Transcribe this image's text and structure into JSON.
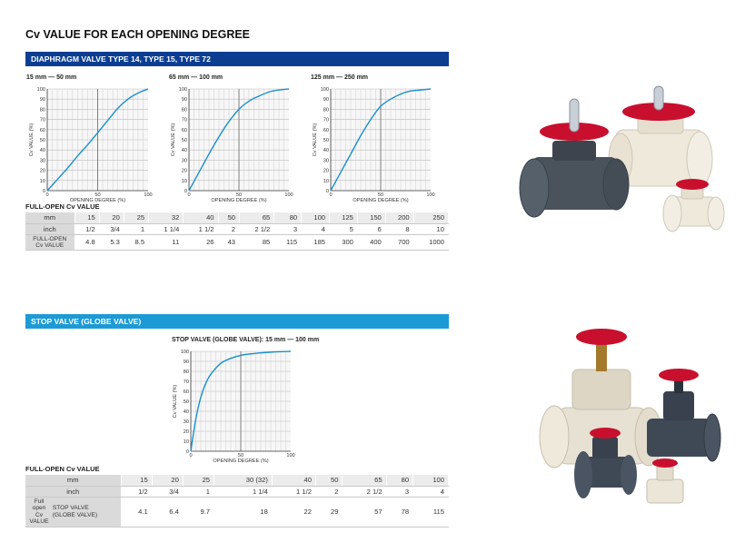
{
  "page": {
    "title": "Cv VALUE FOR EACH OPENING DEGREE"
  },
  "sections": [
    {
      "heading": "DIAPHRAGM VALVE TYPE 14, TYPE 15, TYPE 72",
      "table_label": "FULL-OPEN Cv VALUE",
      "table": {
        "mm_label": "mm",
        "inch_label": "inch",
        "value_label_1": "FULL-OPEN",
        "value_label_2": "Cv VALUE",
        "mm": [
          "15",
          "20",
          "25",
          "32",
          "40",
          "50",
          "65",
          "80",
          "100",
          "125",
          "150",
          "200",
          "250"
        ],
        "inch": [
          "1/2",
          "3/4",
          "1",
          "1 1/4",
          "1 1/2",
          "2",
          "2 1/2",
          "3",
          "4",
          "5",
          "6",
          "8",
          "10"
        ],
        "values": [
          "4.8",
          "5.3",
          "8.5",
          "11",
          "26",
          "43",
          "85",
          "115",
          "185",
          "300",
          "400",
          "700",
          "1000"
        ]
      }
    },
    {
      "heading": "STOP VALVE (GLOBE VALVE)",
      "table_label": "FULL-OPEN Cv VALUE",
      "table": {
        "mm_label": "mm",
        "inch_label": "inch",
        "value_label_1": "Full",
        "value_label_2": "open",
        "value_label_3": "Cv",
        "value_label_4": "VALUE",
        "value_sub_1": "STOP VALVE",
        "value_sub_2": "(GLOBE VALVE)",
        "mm": [
          "15",
          "20",
          "25",
          "30 (32)",
          "40",
          "50",
          "65",
          "80",
          "100"
        ],
        "inch": [
          "1/2",
          "3/4",
          "1",
          "1 1/4",
          "1 1/2",
          "2",
          "2 1/2",
          "3",
          "4"
        ],
        "values": [
          "4.1",
          "6.4",
          "9.7",
          "18",
          "22",
          "29",
          "57",
          "78",
          "115"
        ]
      }
    }
  ],
  "chart_data": [
    {
      "type": "line",
      "title": "15 mm — 50 mm",
      "xlabel": "OPENING DEGREE (%)",
      "ylabel": "Cv VALUE (%)",
      "xlim": [
        0,
        100
      ],
      "ylim": [
        0,
        100
      ],
      "x_ticks": [
        "0",
        "50",
        "100"
      ],
      "y_ticks": [
        "0",
        "10",
        "20",
        "30",
        "40",
        "50",
        "60",
        "70",
        "80",
        "90",
        "100"
      ],
      "grid": true,
      "line_color": "#1a8fd0",
      "x": [
        0,
        10,
        20,
        30,
        40,
        50,
        60,
        70,
        80,
        90,
        100
      ],
      "y": [
        0,
        11,
        22,
        34,
        45,
        57,
        69,
        81,
        90,
        96,
        100
      ]
    },
    {
      "type": "line",
      "title": "65 mm — 100 mm",
      "xlabel": "OPENING DEGREE (%)",
      "ylabel": "Cv VALUE (%)",
      "xlim": [
        0,
        100
      ],
      "ylim": [
        0,
        100
      ],
      "x_ticks": [
        "0",
        "50",
        "100"
      ],
      "y_ticks": [
        "0",
        "10",
        "20",
        "30",
        "40",
        "50",
        "60",
        "70",
        "80",
        "90",
        "100"
      ],
      "grid": true,
      "line_color": "#1a8fd0",
      "x": [
        0,
        10,
        20,
        30,
        40,
        50,
        60,
        70,
        80,
        90,
        100
      ],
      "y": [
        0,
        18,
        36,
        53,
        68,
        80,
        88,
        93,
        97,
        99,
        100
      ]
    },
    {
      "type": "line",
      "title": "125 mm — 250 mm",
      "xlabel": "OPENING DEGREE (%)",
      "ylabel": "Cv VALUE (%)",
      "xlim": [
        0,
        100
      ],
      "ylim": [
        0,
        100
      ],
      "x_ticks": [
        "0",
        "50",
        "100"
      ],
      "y_ticks": [
        "0",
        "10",
        "20",
        "30",
        "40",
        "50",
        "60",
        "70",
        "80",
        "90",
        "100"
      ],
      "grid": true,
      "line_color": "#1a8fd0",
      "x": [
        0,
        10,
        20,
        30,
        40,
        50,
        60,
        70,
        80,
        90,
        100
      ],
      "y": [
        0,
        18,
        36,
        54,
        70,
        83,
        90,
        95,
        98,
        99,
        100
      ]
    },
    {
      "type": "line",
      "title": "STOP VALVE (GLOBE VALVE): 15 mm — 100 mm",
      "xlabel": "OPENING DEGREE (%)",
      "ylabel": "Cv VALUE (%)",
      "xlim": [
        0,
        100
      ],
      "ylim": [
        0,
        100
      ],
      "x_ticks": [
        "0",
        "50",
        "100"
      ],
      "y_ticks": [
        "0",
        "10",
        "20",
        "30",
        "40",
        "50",
        "60",
        "70",
        "80",
        "90",
        "100"
      ],
      "grid": true,
      "line_color": "#1a8fd0",
      "x": [
        0,
        5,
        10,
        15,
        20,
        30,
        40,
        50,
        60,
        70,
        80,
        90,
        100
      ],
      "y": [
        0,
        32,
        54,
        68,
        77,
        88,
        93,
        96,
        97.5,
        98.5,
        99.2,
        99.7,
        100
      ]
    }
  ],
  "photos": [
    {
      "name": "diaphragm-valves-photo",
      "colors": {
        "handwheel": "#c8102e",
        "body_dark": "#4a525c",
        "body_light": "#efe9dc"
      }
    },
    {
      "name": "stop-valves-photo",
      "colors": {
        "handwheel": "#c8102e",
        "body_dark": "#3f4956",
        "body_light": "#e7e1d3"
      }
    }
  ]
}
